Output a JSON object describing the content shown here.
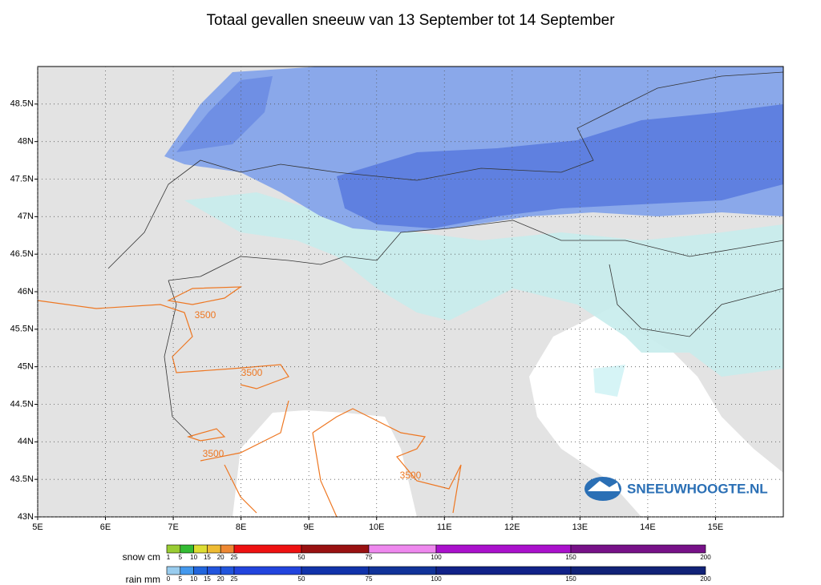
{
  "title": "Totaal gevallen sneeuw van 13 September tot 14 September",
  "map": {
    "lonlim": [
      5,
      16
    ],
    "latlim": [
      43,
      49
    ],
    "lon_ticks": [
      {
        "value": 5,
        "label": "5E"
      },
      {
        "value": 6,
        "label": "6E"
      },
      {
        "value": 7,
        "label": "7E"
      },
      {
        "value": 8,
        "label": "8E"
      },
      {
        "value": 9,
        "label": "9E"
      },
      {
        "value": 10,
        "label": "10E"
      },
      {
        "value": 11,
        "label": "11E"
      },
      {
        "value": 12,
        "label": "12E"
      },
      {
        "value": 13,
        "label": "13E"
      },
      {
        "value": 14,
        "label": "14E"
      },
      {
        "value": 15,
        "label": "15E"
      }
    ],
    "lat_ticks": [
      {
        "value": 43,
        "label": "43N"
      },
      {
        "value": 43.5,
        "label": "43.5N"
      },
      {
        "value": 44,
        "label": "44N"
      },
      {
        "value": 44.5,
        "label": "44.5N"
      },
      {
        "value": 45,
        "label": "45N"
      },
      {
        "value": 45.5,
        "label": "45.5N"
      },
      {
        "value": 46,
        "label": "46N"
      },
      {
        "value": 46.5,
        "label": "46.5N"
      },
      {
        "value": 47,
        "label": "47N"
      },
      {
        "value": 47.5,
        "label": "47.5N"
      },
      {
        "value": 48,
        "label": "48N"
      },
      {
        "value": 48.5,
        "label": "48.5N"
      }
    ],
    "contour_labels": [
      "3500",
      "3500",
      "3500",
      "3500"
    ],
    "logo": "SNEEUWHOOGTE.NL"
  },
  "legend": {
    "snow": {
      "label": "snow cm",
      "bounds": [
        1,
        5,
        10,
        15,
        20,
        25,
        50,
        75,
        100,
        150,
        200
      ],
      "colors": [
        "#99cc33",
        "#33bb33",
        "#dddd33",
        "#eebb33",
        "#ee8833",
        "#ee1111",
        "#991111",
        "#ee88ee",
        "#aa11cc",
        "#771188"
      ]
    },
    "rain": {
      "label": "rain mm",
      "bounds": [
        0,
        5,
        10,
        15,
        20,
        25,
        50,
        75,
        100,
        150,
        200
      ],
      "colors": [
        "#99ccee",
        "#4499ee",
        "#2266dd",
        "#2255dd",
        "#2255dd",
        "#2244dd",
        "#1133aa",
        "#113399",
        "#112288",
        "#112277"
      ]
    }
  }
}
